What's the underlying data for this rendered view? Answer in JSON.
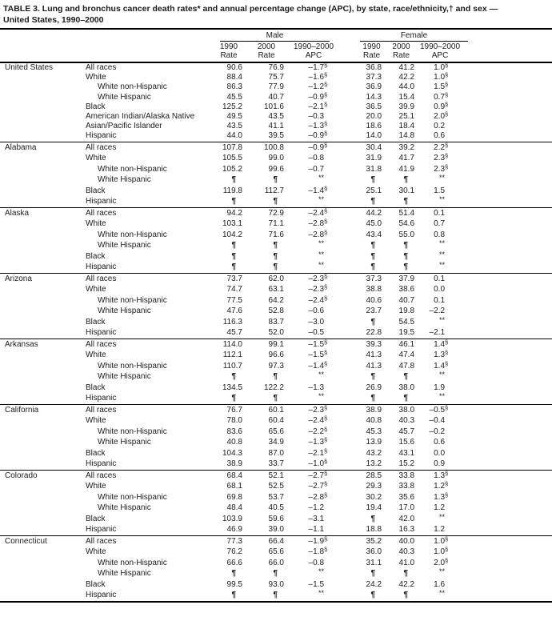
{
  "title": {
    "line1": "TABLE 3.  Lung and bronchus cancer death rates* and annual percentage change (APC), by state, race/ethnicity,† and sex —",
    "line2": "United States, 1990–2000"
  },
  "header": {
    "male_label": "Male",
    "female_label": "Female",
    "subcols": [
      {
        "l1": "1990",
        "l2": "Rate"
      },
      {
        "l1": "2000",
        "l2": "Rate"
      },
      {
        "l1": "1990–2000",
        "l2": "APC"
      }
    ]
  },
  "footnote_marks": {
    "rate_note": "*",
    "ethnicity_note": "†",
    "significant_apc": "§",
    "suppressed_rate": "¶",
    "suppressed_apc": "**"
  },
  "sections": [
    {
      "state": "United States",
      "rows": [
        {
          "label": "All races",
          "indent": false,
          "cells": [
            "90.6",
            "76.9",
            "–1.7§",
            "36.8",
            "41.2",
            "1.0§"
          ]
        },
        {
          "label": "White",
          "indent": false,
          "cells": [
            "88.4",
            "75.7",
            "–1.6§",
            "37.3",
            "42.2",
            "1.0§"
          ]
        },
        {
          "label": "White non-Hispanic",
          "indent": true,
          "cells": [
            "86.3",
            "77.9",
            "–1.2§",
            "36.9",
            "44.0",
            "1.5§"
          ]
        },
        {
          "label": "White Hispanic",
          "indent": true,
          "cells": [
            "45.5",
            "40.7",
            "–0.9§",
            "14.3",
            "15.4",
            "0.7§"
          ]
        },
        {
          "label": "Black",
          "indent": false,
          "cells": [
            "125.2",
            "101.6",
            "–2.1§",
            "36.5",
            "39.9",
            "0.9§"
          ]
        },
        {
          "label": "American Indian/Alaska Native",
          "indent": false,
          "cells": [
            "49.5",
            "43.5",
            "–0.3",
            "20.0",
            "25.1",
            "2.0§"
          ]
        },
        {
          "label": "Asian/Pacific Islander",
          "indent": false,
          "cells": [
            "43.5",
            "41.1",
            "–1.3§",
            "18.6",
            "18.4",
            "0.2"
          ]
        },
        {
          "label": "Hispanic",
          "indent": false,
          "cells": [
            "44.0",
            "39.5",
            "–0.9§",
            "14.0",
            "14.8",
            "0.6"
          ]
        }
      ]
    },
    {
      "state": "Alabama",
      "rows": [
        {
          "label": "All races",
          "indent": false,
          "cells": [
            "107.8",
            "100.8",
            "–0.9§",
            "30.4",
            "39.2",
            "2.2§"
          ]
        },
        {
          "label": "White",
          "indent": false,
          "cells": [
            "105.5",
            "99.0",
            "–0.8",
            "31.9",
            "41.7",
            "2.3§"
          ]
        },
        {
          "label": "White non-Hispanic",
          "indent": true,
          "cells": [
            "105.2",
            "99.6",
            "–0.7",
            "31.8",
            "41.9",
            "2.3§"
          ]
        },
        {
          "label": "White Hispanic",
          "indent": true,
          "cells": [
            "¶",
            "¶",
            "**",
            "¶",
            "¶",
            "**"
          ]
        },
        {
          "label": "Black",
          "indent": false,
          "cells": [
            "119.8",
            "112.7",
            "–1.4§",
            "25.1",
            "30.1",
            "1.5"
          ]
        },
        {
          "label": "Hispanic",
          "indent": false,
          "cells": [
            "¶",
            "¶",
            "**",
            "¶",
            "¶",
            "**"
          ]
        }
      ]
    },
    {
      "state": "Alaska",
      "rows": [
        {
          "label": "All races",
          "indent": false,
          "cells": [
            "94.2",
            "72.9",
            "–2.4§",
            "44.2",
            "51.4",
            "0.1"
          ]
        },
        {
          "label": "White",
          "indent": false,
          "cells": [
            "103.1",
            "71.1",
            "–2.8§",
            "45.0",
            "54.6",
            "0.7"
          ]
        },
        {
          "label": "White non-Hispanic",
          "indent": true,
          "cells": [
            "104.2",
            "71.6",
            "–2.8§",
            "43.4",
            "55.0",
            "0.8"
          ]
        },
        {
          "label": "White Hispanic",
          "indent": true,
          "cells": [
            "¶",
            "¶",
            "**",
            "¶",
            "¶",
            "**"
          ]
        },
        {
          "label": "Black",
          "indent": false,
          "cells": [
            "¶",
            "¶",
            "**",
            "¶",
            "¶",
            "**"
          ]
        },
        {
          "label": "Hispanic",
          "indent": false,
          "cells": [
            "¶",
            "¶",
            "**",
            "¶",
            "¶",
            "**"
          ]
        }
      ]
    },
    {
      "state": "Arizona",
      "rows": [
        {
          "label": "All races",
          "indent": false,
          "cells": [
            "73.7",
            "62.0",
            "–2.3§",
            "37.3",
            "37.9",
            "0.1"
          ]
        },
        {
          "label": "White",
          "indent": false,
          "cells": [
            "74.7",
            "63.1",
            "–2.3§",
            "38.8",
            "38.6",
            "0.0"
          ]
        },
        {
          "label": "White non-Hispanic",
          "indent": true,
          "cells": [
            "77.5",
            "64.2",
            "–2.4§",
            "40.6",
            "40.7",
            "0.1"
          ]
        },
        {
          "label": "White Hispanic",
          "indent": true,
          "cells": [
            "47.6",
            "52.8",
            "–0.6",
            "23.7",
            "19.8",
            "–2.2"
          ]
        },
        {
          "label": "Black",
          "indent": false,
          "cells": [
            "116.3",
            "83.7",
            "–3.0",
            "¶",
            "54.5",
            "**"
          ]
        },
        {
          "label": "Hispanic",
          "indent": false,
          "cells": [
            "45.7",
            "52.0",
            "–0.5",
            "22.8",
            "19.5",
            "–2.1"
          ]
        }
      ]
    },
    {
      "state": "Arkansas",
      "rows": [
        {
          "label": "All races",
          "indent": false,
          "cells": [
            "114.0",
            "99.1",
            "–1.5§",
            "39.3",
            "46.1",
            "1.4§"
          ]
        },
        {
          "label": "White",
          "indent": false,
          "cells": [
            "112.1",
            "96.6",
            "–1.5§",
            "41.3",
            "47.4",
            "1.3§"
          ]
        },
        {
          "label": "White non-Hispanic",
          "indent": true,
          "cells": [
            "110.7",
            "97.3",
            "–1.4§",
            "41.3",
            "47.8",
            "1.4§"
          ]
        },
        {
          "label": "White Hispanic",
          "indent": true,
          "cells": [
            "¶",
            "¶",
            "**",
            "¶",
            "¶",
            "**"
          ]
        },
        {
          "label": "Black",
          "indent": false,
          "cells": [
            "134.5",
            "122.2",
            "–1.3",
            "26.9",
            "38.0",
            "1.9"
          ]
        },
        {
          "label": "Hispanic",
          "indent": false,
          "cells": [
            "¶",
            "¶",
            "**",
            "¶",
            "¶",
            "**"
          ]
        }
      ]
    },
    {
      "state": "California",
      "rows": [
        {
          "label": "All races",
          "indent": false,
          "cells": [
            "76.7",
            "60.1",
            "–2.3§",
            "38.9",
            "38.0",
            "–0.5§"
          ]
        },
        {
          "label": "White",
          "indent": false,
          "cells": [
            "78.0",
            "60.4",
            "–2.4§",
            "40.8",
            "40.3",
            "–0.4"
          ]
        },
        {
          "label": "White non-Hispanic",
          "indent": true,
          "cells": [
            "83.6",
            "65.6",
            "–2.2§",
            "45.3",
            "45.7",
            "–0.2"
          ]
        },
        {
          "label": "White Hispanic",
          "indent": true,
          "cells": [
            "40.8",
            "34.9",
            "–1.3§",
            "13.9",
            "15.6",
            "0.6"
          ]
        },
        {
          "label": "Black",
          "indent": false,
          "cells": [
            "104.3",
            "87.0",
            "–2.1§",
            "43.2",
            "43.1",
            "0.0"
          ]
        },
        {
          "label": "Hispanic",
          "indent": false,
          "cells": [
            "38.9",
            "33.7",
            "–1.0§",
            "13.2",
            "15.2",
            "0.9"
          ]
        }
      ]
    },
    {
      "state": "Colorado",
      "rows": [
        {
          "label": "All races",
          "indent": false,
          "cells": [
            "68.4",
            "52.1",
            "–2.7§",
            "28.5",
            "33.8",
            "1.3§"
          ]
        },
        {
          "label": "White",
          "indent": false,
          "cells": [
            "68.1",
            "52.5",
            "–2.7§",
            "29.3",
            "33.8",
            "1.2§"
          ]
        },
        {
          "label": "White non-Hispanic",
          "indent": true,
          "cells": [
            "69.8",
            "53.7",
            "–2.8§",
            "30.2",
            "35.6",
            "1.3§"
          ]
        },
        {
          "label": "White Hispanic",
          "indent": true,
          "cells": [
            "48.4",
            "40.5",
            "–1.2",
            "19.4",
            "17.0",
            "1.2"
          ]
        },
        {
          "label": "Black",
          "indent": false,
          "cells": [
            "103.9",
            "59.6",
            "–3.1",
            "¶",
            "42.0",
            "**"
          ]
        },
        {
          "label": "Hispanic",
          "indent": false,
          "cells": [
            "46.9",
            "39.0",
            "–1.1",
            "18.8",
            "16.3",
            "1.2"
          ]
        }
      ]
    },
    {
      "state": "Connecticut",
      "rows": [
        {
          "label": "All races",
          "indent": false,
          "cells": [
            "77.3",
            "66.4",
            "–1.9§",
            "35.2",
            "40.0",
            "1.0§"
          ]
        },
        {
          "label": "White",
          "indent": false,
          "cells": [
            "76.2",
            "65.6",
            "–1.8§",
            "36.0",
            "40.3",
            "1.0§"
          ]
        },
        {
          "label": "White non-Hispanic",
          "indent": true,
          "cells": [
            "66.6",
            "66.0",
            "–0.8",
            "31.1",
            "41.0",
            "2.0§"
          ]
        },
        {
          "label": "White Hispanic",
          "indent": true,
          "cells": [
            "¶",
            "¶",
            "**",
            "¶",
            "¶",
            "**"
          ]
        },
        {
          "label": "Black",
          "indent": false,
          "cells": [
            "99.5",
            "93.0",
            "–1.5",
            "24.2",
            "42.2",
            "1.6"
          ]
        },
        {
          "label": "Hispanic",
          "indent": false,
          "cells": [
            "¶",
            "¶",
            "**",
            "¶",
            "¶",
            "**"
          ]
        }
      ]
    }
  ]
}
